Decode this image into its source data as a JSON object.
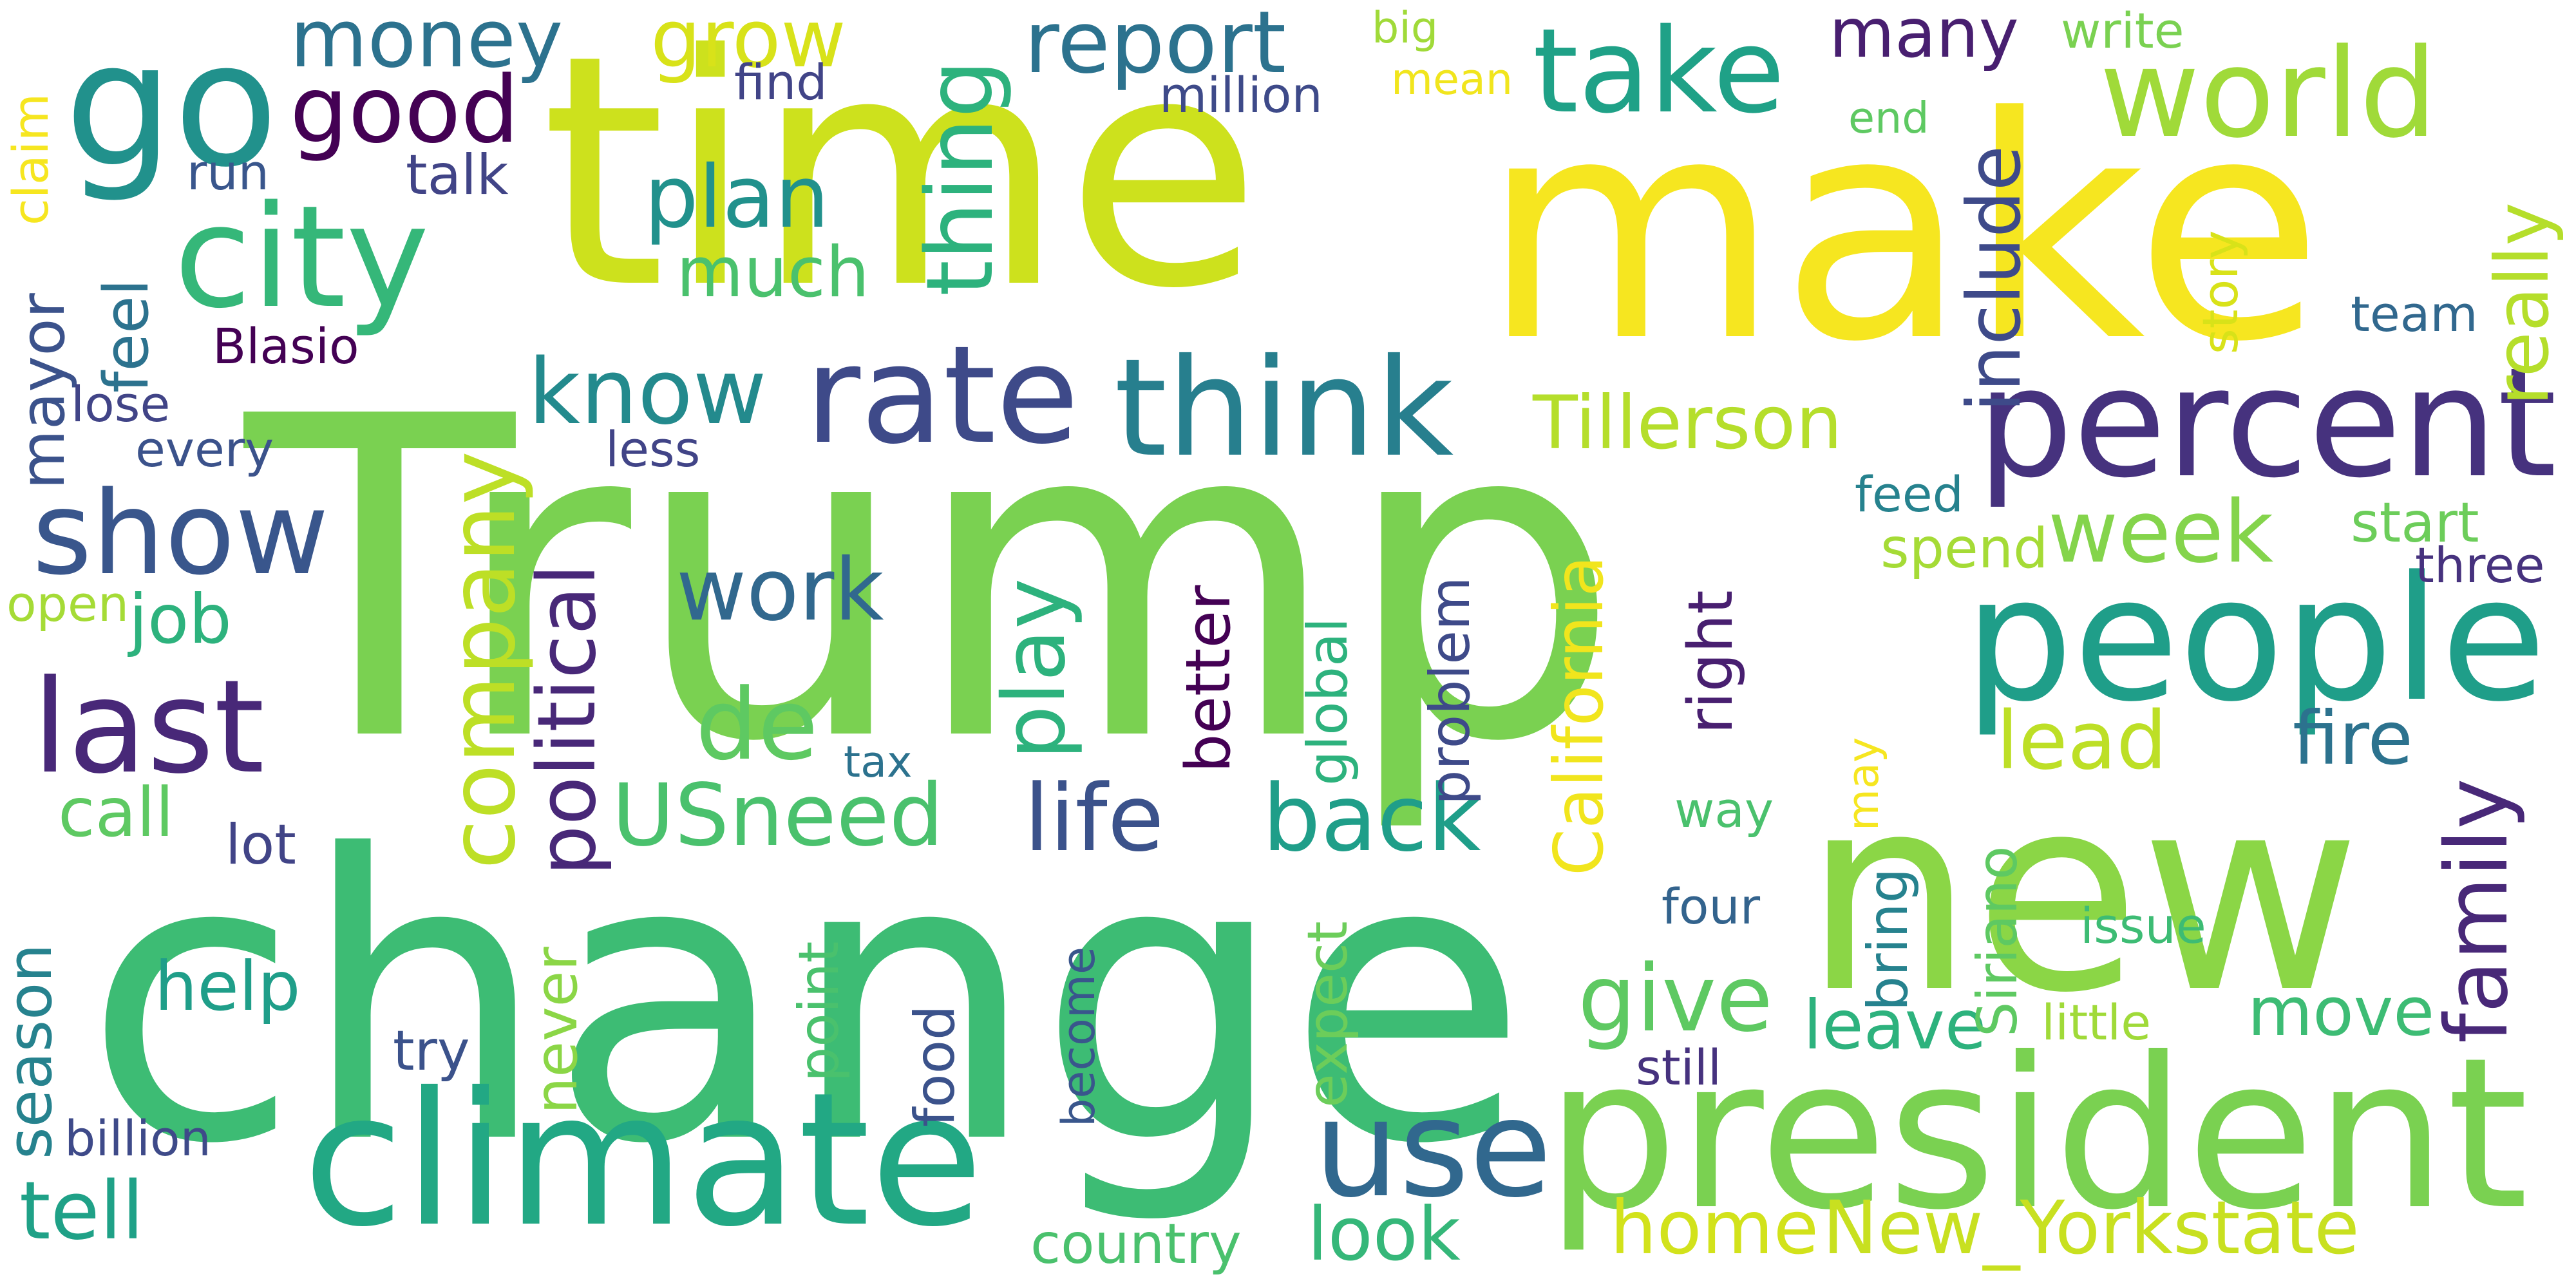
{
  "words": [
    {
      "text": "Trump",
      "color": "#7ad151"
    },
    {
      "text": "time",
      "color": "#cde11d"
    },
    {
      "text": "make",
      "color": "#f6e620"
    },
    {
      "text": "change",
      "color": "#3dbc74"
    },
    {
      "text": "new",
      "color": "#8bd646"
    },
    {
      "text": "president",
      "color": "#7ad151"
    },
    {
      "text": "climate",
      "color": "#22a884"
    },
    {
      "text": "people",
      "color": "#1f9e89"
    },
    {
      "text": "go",
      "color": "#21918c"
    },
    {
      "text": "city",
      "color": "#35b779"
    },
    {
      "text": "take",
      "color": "#1fa187"
    },
    {
      "text": "world",
      "color": "#a0da39"
    },
    {
      "text": "percent",
      "color": "#46327e"
    },
    {
      "text": "rate",
      "color": "#3e4a89"
    },
    {
      "text": "think",
      "color": "#277f8e"
    },
    {
      "text": "show",
      "color": "#39568c"
    },
    {
      "text": "last",
      "color": "#482878"
    },
    {
      "text": "use",
      "color": "#31688e"
    },
    {
      "text": "report",
      "color": "#2c728e"
    },
    {
      "text": "money",
      "color": "#2c728e"
    },
    {
      "text": "good",
      "color": "#440154"
    },
    {
      "text": "know",
      "color": "#238a8d"
    },
    {
      "text": "de",
      "color": "#5ec962"
    },
    {
      "text": "company",
      "color": "#bddf26"
    },
    {
      "text": "political",
      "color": "#482878"
    },
    {
      "text": "plan",
      "color": "#21918c"
    },
    {
      "text": "much",
      "color": "#4ac16d"
    },
    {
      "text": "thing",
      "color": "#2db27d"
    },
    {
      "text": "work",
      "color": "#31688e"
    },
    {
      "text": "play",
      "color": "#2db27d"
    },
    {
      "text": "life",
      "color": "#3b528b"
    },
    {
      "text": "back",
      "color": "#1f9e89"
    },
    {
      "text": "USneed",
      "color": "#4ac16d"
    },
    {
      "text": "Tillerson",
      "color": "#b5de2b"
    },
    {
      "text": "week",
      "color": "#84d44b"
    },
    {
      "text": "lead",
      "color": "#bddf26"
    },
    {
      "text": "fire",
      "color": "#2c728e"
    },
    {
      "text": "family",
      "color": "#482878"
    },
    {
      "text": "give",
      "color": "#5ec962"
    },
    {
      "text": "leave",
      "color": "#2db27d"
    },
    {
      "text": "move",
      "color": "#3dbc74"
    },
    {
      "text": "look",
      "color": "#35b779"
    },
    {
      "text": "home",
      "color": "#d2e21b"
    },
    {
      "text": "New_Yorkstate",
      "color": "#c8e020"
    },
    {
      "text": "tell",
      "color": "#1fa187"
    },
    {
      "text": "help",
      "color": "#1f9e89"
    },
    {
      "text": "call",
      "color": "#5ec962"
    },
    {
      "text": "job",
      "color": "#2db27d"
    },
    {
      "text": "mayor",
      "color": "#3b528b"
    },
    {
      "text": "feel",
      "color": "#2c728e"
    },
    {
      "text": "season",
      "color": "#26828e"
    },
    {
      "text": "include",
      "color": "#3e4a89"
    },
    {
      "text": "many",
      "color": "#481f70"
    },
    {
      "text": "really",
      "color": "#b5de2b"
    },
    {
      "text": "grow",
      "color": "#d8e219"
    },
    {
      "text": "Blasio",
      "color": "#440154"
    },
    {
      "text": "claim",
      "color": "#f6e620"
    },
    {
      "text": "run",
      "color": "#39568c"
    },
    {
      "text": "talk",
      "color": "#414487"
    },
    {
      "text": "find",
      "color": "#414487"
    },
    {
      "text": "million",
      "color": "#3e4a89"
    },
    {
      "text": "big",
      "color": "#a0da39"
    },
    {
      "text": "mean",
      "color": "#f1e51d"
    },
    {
      "text": "write",
      "color": "#7ad151"
    },
    {
      "text": "end",
      "color": "#5ec962"
    },
    {
      "text": "story",
      "color": "#d8e219"
    },
    {
      "text": "team",
      "color": "#31688e"
    },
    {
      "text": "lose",
      "color": "#414487"
    },
    {
      "text": "every",
      "color": "#3b528b"
    },
    {
      "text": "less",
      "color": "#414487"
    },
    {
      "text": "feed",
      "color": "#26828e"
    },
    {
      "text": "spend",
      "color": "#a5db36"
    },
    {
      "text": "start",
      "color": "#6ccd5a"
    },
    {
      "text": "three",
      "color": "#46327e"
    },
    {
      "text": "open",
      "color": "#a5db36"
    },
    {
      "text": "better",
      "color": "#440154"
    },
    {
      "text": "global",
      "color": "#2db27d"
    },
    {
      "text": "problem",
      "color": "#3e4a89"
    },
    {
      "text": "California",
      "color": "#f1e51d"
    },
    {
      "text": "right",
      "color": "#481f70"
    },
    {
      "text": "may",
      "color": "#f6e620"
    },
    {
      "text": "tax",
      "color": "#2c728e"
    },
    {
      "text": "way",
      "color": "#4ac16d"
    },
    {
      "text": "lot",
      "color": "#414487"
    },
    {
      "text": "Siriano",
      "color": "#5ec962"
    },
    {
      "text": "bring",
      "color": "#26828e"
    },
    {
      "text": "four",
      "color": "#33638d"
    },
    {
      "text": "issue",
      "color": "#3dbc74"
    },
    {
      "text": "point",
      "color": "#4ac16d"
    },
    {
      "text": "food",
      "color": "#3b528b"
    },
    {
      "text": "become",
      "color": "#39568c"
    },
    {
      "text": "expect",
      "color": "#6ccd5a"
    },
    {
      "text": "never",
      "color": "#8bd646"
    },
    {
      "text": "little",
      "color": "#a0da39"
    },
    {
      "text": "still",
      "color": "#46327e"
    },
    {
      "text": "try",
      "color": "#3b528b"
    },
    {
      "text": "billion",
      "color": "#3e4a89"
    },
    {
      "text": "country",
      "color": "#4ac16d"
    }
  ]
}
